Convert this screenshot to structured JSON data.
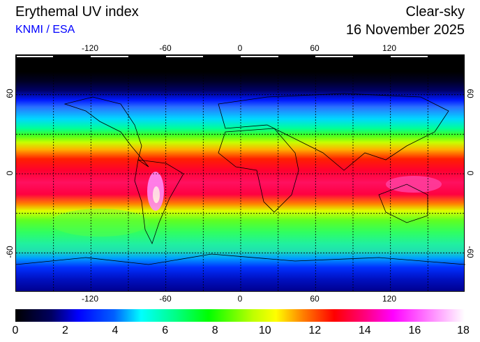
{
  "header": {
    "title": "Erythemal UV index",
    "organization": "KNMI / ESA",
    "mode": "Clear-sky",
    "date": "16 November 2025"
  },
  "map": {
    "projection": "equirectangular",
    "lon_ticks": [
      "-120",
      "-60",
      "0",
      "60",
      "120"
    ],
    "lat_ticks": [
      "60",
      "0",
      "-60"
    ],
    "grid": "dashed every 30 degrees"
  },
  "colorbar": {
    "range": [
      0,
      18
    ],
    "labels": [
      "0",
      "2",
      "4",
      "6",
      "8",
      "10",
      "12",
      "14",
      "16",
      "18"
    ],
    "colors": [
      "#000000",
      "#0000ff",
      "#00ffff",
      "#00ff00",
      "#ffff00",
      "#ff0000",
      "#ff00ff",
      "#ffffff"
    ]
  }
}
